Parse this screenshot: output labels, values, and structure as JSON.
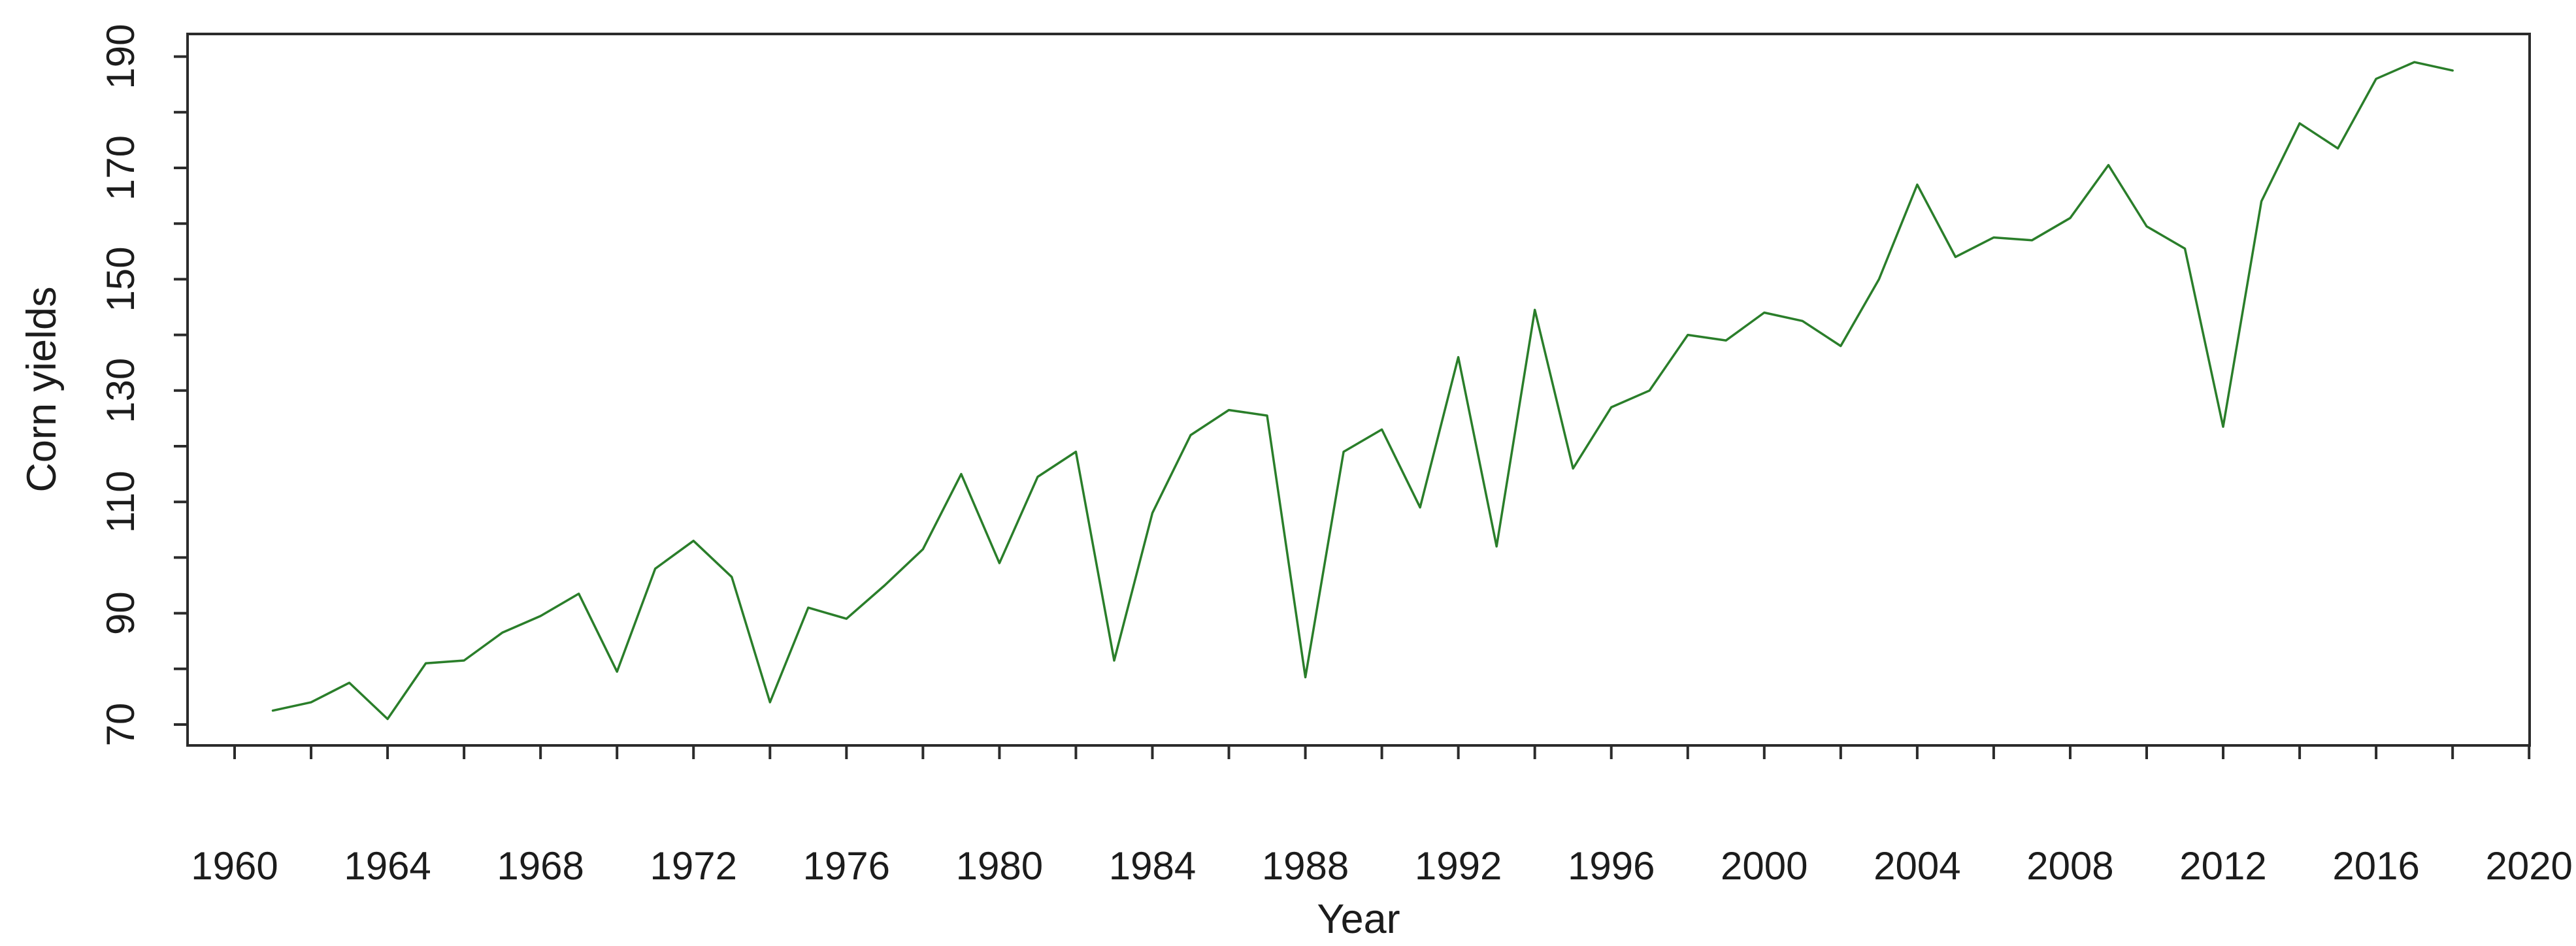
{
  "figure": {
    "background_color": "#ffffff",
    "text_color": "#1c1c1c",
    "axis_color": "#2b2b2b"
  },
  "chart_data": {
    "type": "line",
    "title": "",
    "xlabel": "Year",
    "ylabel": "Corn yields",
    "grid": "off",
    "legend": "none",
    "line_color": "#2a7e2a",
    "xlim": [
      1958.8,
      2020.2
    ],
    "ylim": [
      66,
      194
    ],
    "x_minor_tick_step": 2,
    "x_tick_labels": [
      "1960",
      "1964",
      "1968",
      "1972",
      "1976",
      "1980",
      "1984",
      "1988",
      "1992",
      "1996",
      "2000",
      "2004",
      "2008",
      "2012",
      "2016",
      "2020"
    ],
    "y_minor_tick_step": 10,
    "y_tick_labels": [
      "70",
      "90",
      "110",
      "130",
      "150",
      "170",
      "190"
    ],
    "series": [
      {
        "name": "Corn yields",
        "x": [
          1961,
          1962,
          1963,
          1964,
          1965,
          1966,
          1967,
          1968,
          1969,
          1970,
          1971,
          1972,
          1973,
          1974,
          1975,
          1976,
          1977,
          1978,
          1979,
          1980,
          1981,
          1982,
          1983,
          1984,
          1985,
          1986,
          1987,
          1988,
          1989,
          1990,
          1991,
          1992,
          1993,
          1994,
          1995,
          1996,
          1997,
          1998,
          1999,
          2000,
          2001,
          2002,
          2003,
          2004,
          2005,
          2006,
          2007,
          2008,
          2009,
          2010,
          2011,
          2012,
          2013,
          2014,
          2015,
          2016,
          2017,
          2018
        ],
        "values": [
          72.5,
          74,
          77.5,
          71,
          81,
          81.5,
          86.5,
          89.5,
          93.5,
          79.5,
          98,
          103,
          96.5,
          74,
          91,
          89,
          95,
          101.5,
          115,
          99,
          114.5,
          119,
          81.5,
          108,
          122,
          126.5,
          125.5,
          78.5,
          119,
          123,
          109,
          136,
          102,
          144.5,
          116,
          127,
          130,
          140,
          139,
          144,
          142.5,
          138,
          150,
          167,
          154,
          157.5,
          157,
          161,
          170.5,
          159.5,
          155.5,
          123.5,
          164,
          178,
          173.5,
          186,
          189,
          187.5
        ]
      }
    ]
  }
}
